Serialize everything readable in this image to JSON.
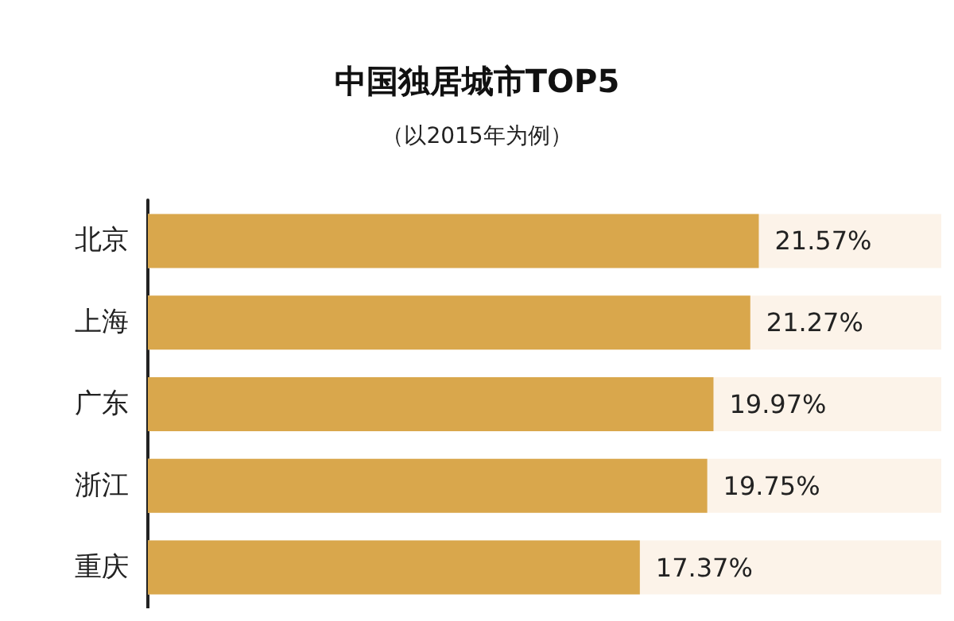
{
  "chart_data": {
    "type": "bar",
    "orientation": "horizontal",
    "title": "中国独居城市TOP5",
    "subtitle": "（以2015年为例）",
    "categories": [
      "北京",
      "上海",
      "广东",
      "浙江",
      "重庆"
    ],
    "values": [
      21.57,
      21.27,
      19.97,
      19.75,
      17.37
    ],
    "value_labels": [
      "21.57%",
      "21.27%",
      "19.97%",
      "19.75%",
      "17.37%"
    ],
    "color": "#d9a74c"
  }
}
